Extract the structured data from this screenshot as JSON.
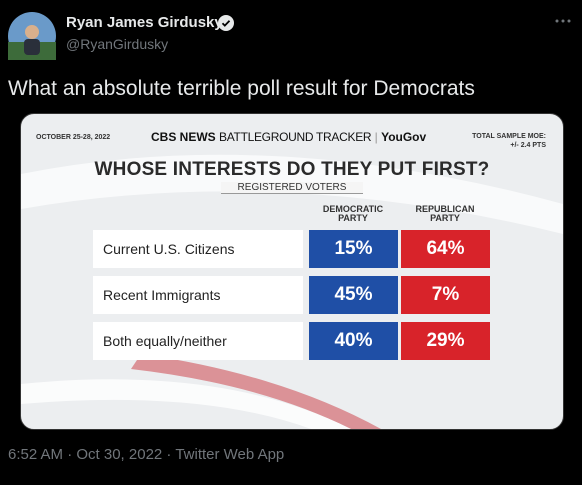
{
  "tweet": {
    "author": {
      "name": "Ryan James Girdusky",
      "handle": "@RyanGirdusky"
    },
    "text": "What an absolute terrible poll result for Democrats",
    "timestamp": "6:52 AM · Oct 30, 2022 · Twitter Web App"
  },
  "graphic": {
    "date": "OCTOBER 25-28, 2022",
    "source": "CBS NEWS",
    "tracker": "BATTLEGROUND TRACKER",
    "partner": "YouGov",
    "moe": [
      "TOTAL SAMPLE MOE:",
      "+/- 2.4 PTS"
    ],
    "title": "WHOSE INTERESTS DO THEY PUT FIRST?",
    "subtitle": "REGISTERED VOTERS",
    "table": {
      "columns": [
        "DEMOCRATIC PARTY",
        "REPUBLICAN PARTY"
      ],
      "rows": [
        {
          "label": "Current U.S. Citizens",
          "values": [
            "15%",
            "64%"
          ]
        },
        {
          "label": "Recent Immigrants",
          "values": [
            "45%",
            "7%"
          ]
        },
        {
          "label": "Both equally/neither",
          "values": [
            "40%",
            "29%"
          ]
        }
      ]
    }
  }
}
